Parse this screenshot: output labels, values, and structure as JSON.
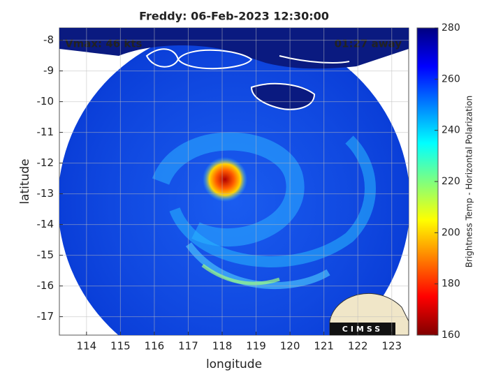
{
  "chart_data": {
    "type": "map",
    "title": "Freddy: 06-Feb-2023 12:30:00",
    "annotations": [
      "Vmax: 46 kts",
      "01:27 away"
    ],
    "xlabel": "longitude",
    "ylabel": "latitude",
    "xlim": [
      113.2,
      123.5
    ],
    "ylim": [
      -17.6,
      -7.6
    ],
    "xticks": [
      114,
      115,
      116,
      117,
      118,
      119,
      120,
      121,
      122,
      123
    ],
    "yticks": [
      -17,
      -16,
      -15,
      -14,
      -13,
      -12,
      -11,
      -10,
      -9,
      -8
    ],
    "grid": true,
    "colorbar": {
      "label": "Brightness Temp - Horizontal Polarization",
      "lim": [
        160,
        280
      ],
      "ticks": [
        160,
        180,
        200,
        220,
        240,
        260,
        280
      ],
      "colormap": "jet"
    },
    "logo": "CIMSS"
  }
}
